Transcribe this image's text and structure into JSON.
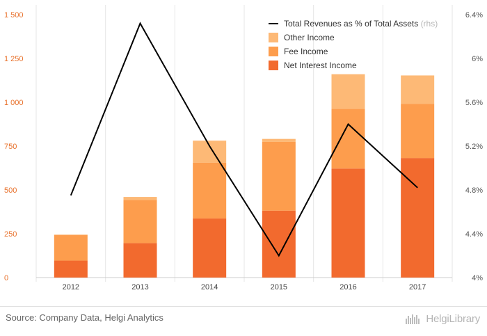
{
  "chart_data": {
    "type": "bar",
    "stacked": true,
    "categories": [
      "2012",
      "2013",
      "2014",
      "2015",
      "2016",
      "2017"
    ],
    "series": [
      {
        "name": "Net Interest Income",
        "values": [
          97,
          197,
          337,
          382,
          622,
          682
        ],
        "color": "#f26a2e"
      },
      {
        "name": "Fee Income",
        "values": [
          145,
          246,
          318,
          392,
          340,
          308
        ],
        "color": "#fd9d4d"
      },
      {
        "name": "Other Income",
        "values": [
          3,
          17,
          126,
          17,
          198,
          163
        ],
        "color": "#fdb976"
      }
    ],
    "line_series": {
      "name": "Total Revenues as % of Total Assets",
      "axis_note": "(rhs)",
      "values": [
        4.75,
        6.32,
        5.2,
        4.2,
        5.4,
        4.82
      ],
      "color": "#000000"
    },
    "y_left": {
      "ylim": [
        0,
        1500
      ],
      "ticks": [
        "0",
        "250",
        "500",
        "750",
        "1 000",
        "1 250",
        "1 500"
      ],
      "color": "#e8702a"
    },
    "y_right": {
      "ylim": [
        4,
        6.4
      ],
      "ticks": [
        "4%",
        "4.4%",
        "4.8%",
        "5.2%",
        "5.6%",
        "6%",
        "6.4%"
      ]
    },
    "grid": "vertical separators between categories",
    "legend_position": "top-right",
    "legend_order": [
      "line",
      "Other Income",
      "Fee Income",
      "Net Interest Income"
    ]
  },
  "footer": {
    "source": "Source: Company Data, Helgi Analytics",
    "brand": "HelgiLibrary"
  }
}
